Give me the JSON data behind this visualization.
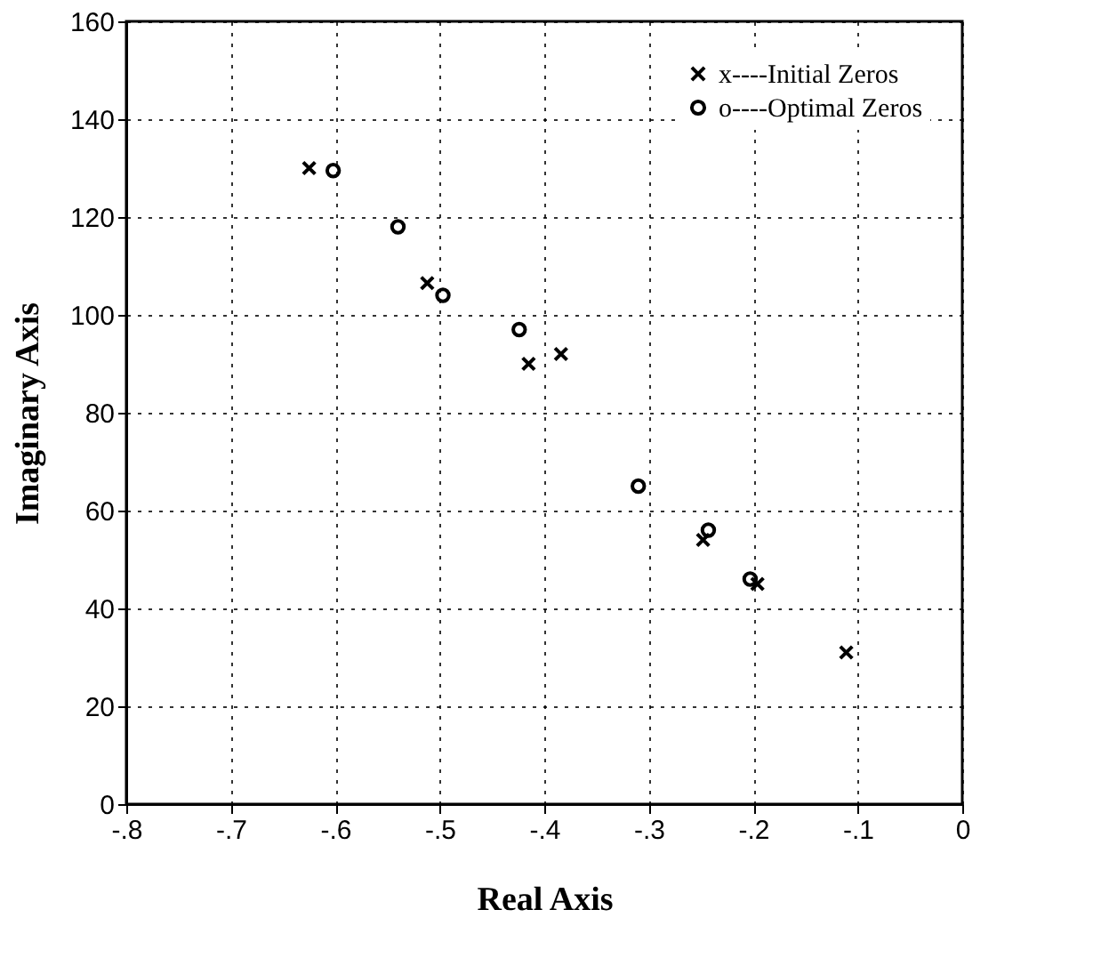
{
  "chart_data": {
    "type": "scatter",
    "xlabel": "Real  Axis",
    "ylabel": "Imaginary   Axis",
    "xlim": [
      -0.8,
      0
    ],
    "ylim": [
      0,
      160
    ],
    "xticks": [
      {
        "value": -0.8,
        "label": "-.8"
      },
      {
        "value": -0.7,
        "label": "-.7"
      },
      {
        "value": -0.6,
        "label": "-.6"
      },
      {
        "value": -0.5,
        "label": "-.5"
      },
      {
        "value": -0.4,
        "label": "-.4"
      },
      {
        "value": -0.3,
        "label": "-.3"
      },
      {
        "value": -0.2,
        "label": "-.2"
      },
      {
        "value": -0.1,
        "label": "-.1"
      },
      0
    ],
    "yticks": [
      0,
      20,
      40,
      60,
      80,
      100,
      120,
      140,
      160
    ],
    "grid": true,
    "legend": "top right",
    "series": [
      {
        "name": "x----Initial Zeros",
        "color": "#000000",
        "marker": "cross",
        "x": [
          -0.625,
          -0.512,
          -0.415,
          -0.384,
          -0.248,
          -0.196,
          -0.111
        ],
        "values": [
          130,
          106.5,
          90,
          92,
          54,
          45,
          31
        ]
      },
      {
        "name": "o----Optimal Zeros",
        "color": "#000000",
        "marker": "circle",
        "x": [
          -0.602,
          -0.54,
          -0.497,
          -0.424,
          -0.31,
          -0.243,
          -0.203
        ],
        "values": [
          129.5,
          118,
          104,
          97,
          65,
          56,
          46
        ]
      }
    ]
  }
}
